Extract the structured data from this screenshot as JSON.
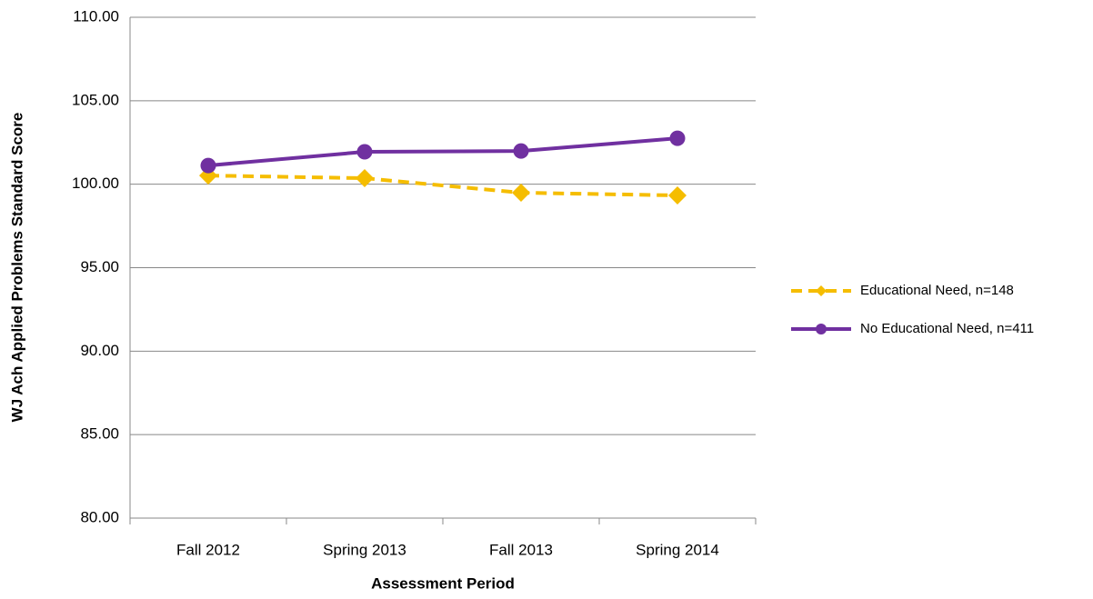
{
  "chart_data": {
    "type": "line",
    "x_label": "Assessment Period",
    "y_label": "WJ Ach Applied Problems Standard Score",
    "categories": [
      "Fall 2012",
      "Spring 2013",
      "Fall 2013",
      "Spring 2014"
    ],
    "series": [
      {
        "name": "Educational Need, n=148",
        "color": "#f5bd00",
        "dash": true,
        "marker": "diamond",
        "values": [
          100.52,
          100.36,
          99.49,
          99.33
        ]
      },
      {
        "name": "No Educational Need, n=411",
        "color": "#7030a0",
        "dash": false,
        "marker": "circle",
        "values": [
          101.12,
          101.94,
          101.99,
          102.75
        ]
      }
    ],
    "ylim": [
      80,
      110
    ],
    "yticks": [
      {
        "value": 80,
        "label": "80.00"
      },
      {
        "value": 85,
        "label": "85.00"
      },
      {
        "value": 90,
        "label": "90.00"
      },
      {
        "value": 95,
        "label": "95.00"
      },
      {
        "value": 100,
        "label": "100.00"
      },
      {
        "value": 105,
        "label": "105.00"
      },
      {
        "value": 110,
        "label": "110.00"
      }
    ],
    "grid": true,
    "legend": "right"
  }
}
